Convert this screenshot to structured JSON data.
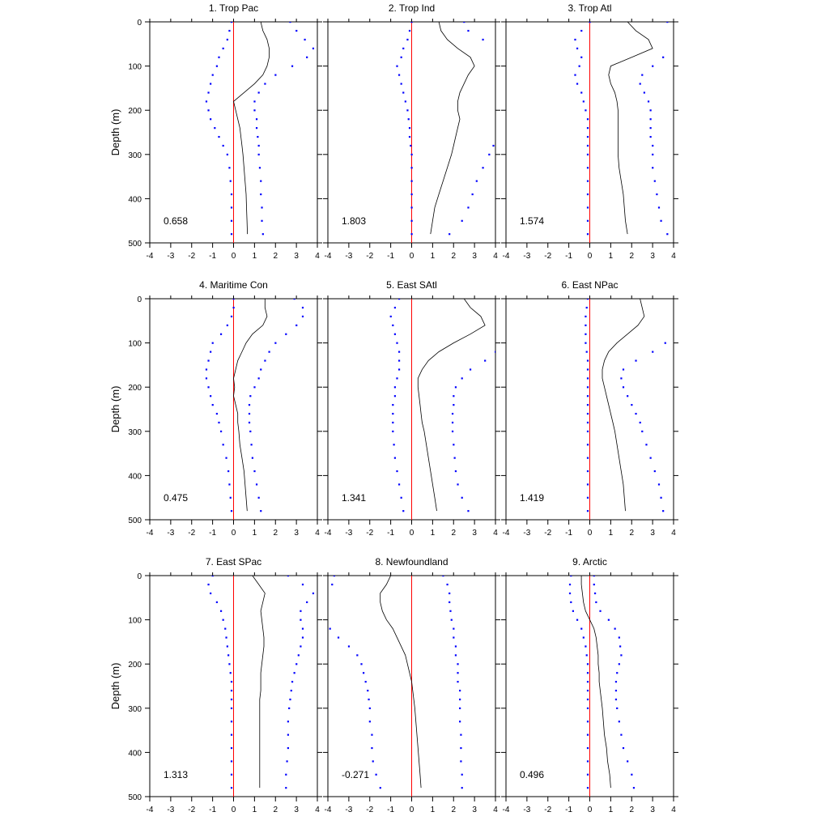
{
  "figure": {
    "ylabel": "Depth (m)",
    "x_ticks": [
      -4,
      -3,
      -2,
      -1,
      0,
      1,
      2,
      3,
      4
    ],
    "y_ticks": [
      0,
      100,
      200,
      300,
      400,
      500
    ],
    "colors": {
      "mean": "#000000",
      "bounds": "#0000ff",
      "zero": "#ff0000"
    }
  },
  "chart_data": [
    {
      "type": "line",
      "title": "1. Trop Pac",
      "value_label": "0.658",
      "xlim": [
        -4,
        4
      ],
      "ylim": [
        500,
        0
      ],
      "ylabel": "Depth (m)",
      "grid": false,
      "depth": [
        0,
        20,
        40,
        60,
        80,
        100,
        120,
        140,
        160,
        180,
        200,
        220,
        240,
        260,
        280,
        300,
        330,
        360,
        390,
        420,
        450,
        480
      ],
      "mean": [
        1.3,
        1.4,
        1.6,
        1.7,
        1.7,
        1.6,
        1.4,
        1.0,
        0.5,
        0.0,
        0.1,
        0.2,
        0.3,
        0.35,
        0.4,
        0.45,
        0.5,
        0.55,
        0.6,
        0.62,
        0.64,
        0.66
      ],
      "lower": [
        -0.1,
        -0.2,
        -0.3,
        -0.5,
        -0.7,
        -0.8,
        -1.0,
        -1.1,
        -1.2,
        -1.3,
        -1.2,
        -1.1,
        -0.9,
        -0.7,
        -0.5,
        -0.3,
        -0.2,
        -0.15,
        -0.1,
        -0.1,
        -0.1,
        -0.1
      ],
      "upper": [
        2.7,
        3.0,
        3.4,
        3.8,
        3.5,
        2.8,
        2.0,
        1.5,
        1.2,
        1.0,
        1.0,
        1.1,
        1.1,
        1.15,
        1.2,
        1.2,
        1.25,
        1.3,
        1.3,
        1.35,
        1.35,
        1.4
      ]
    },
    {
      "type": "line",
      "title": "2. Trop Ind",
      "value_label": "1.803",
      "xlim": [
        -4,
        4
      ],
      "ylim": [
        500,
        0
      ],
      "ylabel": "Depth (m)",
      "grid": false,
      "depth": [
        0,
        20,
        40,
        60,
        80,
        100,
        120,
        140,
        160,
        180,
        200,
        220,
        240,
        260,
        280,
        300,
        330,
        360,
        390,
        420,
        450,
        480
      ],
      "mean": [
        1.3,
        1.4,
        1.7,
        2.2,
        2.8,
        3.0,
        2.7,
        2.5,
        2.3,
        2.2,
        2.2,
        2.3,
        2.2,
        2.1,
        2.0,
        1.9,
        1.7,
        1.5,
        1.3,
        1.1,
        1.0,
        0.9
      ],
      "lower": [
        0.0,
        -0.1,
        -0.2,
        -0.4,
        -0.5,
        -0.7,
        -0.6,
        -0.5,
        -0.4,
        -0.3,
        -0.2,
        -0.15,
        -0.1,
        -0.1,
        -0.05,
        0.0,
        0.0,
        0.0,
        0.0,
        0.0,
        0.0,
        0.0
      ],
      "upper": [
        2.5,
        2.7,
        3.4,
        null,
        null,
        null,
        null,
        null,
        null,
        null,
        null,
        null,
        null,
        null,
        3.9,
        3.7,
        3.4,
        3.1,
        2.9,
        2.7,
        2.4,
        1.8
      ]
    },
    {
      "type": "line",
      "title": "3. Trop Atl",
      "value_label": "1.574",
      "xlim": [
        -4,
        4
      ],
      "ylim": [
        500,
        0
      ],
      "ylabel": "Depth (m)",
      "grid": false,
      "depth": [
        0,
        20,
        40,
        60,
        80,
        100,
        120,
        140,
        160,
        180,
        200,
        220,
        240,
        260,
        280,
        300,
        330,
        360,
        390,
        420,
        450,
        480
      ],
      "mean": [
        1.8,
        2.2,
        2.8,
        3.0,
        2.0,
        1.0,
        0.9,
        1.0,
        1.2,
        1.3,
        1.35,
        1.35,
        1.35,
        1.35,
        1.35,
        1.35,
        1.4,
        1.5,
        1.6,
        1.65,
        1.7,
        1.8
      ],
      "lower": [
        0.0,
        -0.4,
        -0.7,
        -0.6,
        -0.4,
        -0.5,
        -0.7,
        -0.6,
        -0.4,
        -0.3,
        -0.2,
        -0.1,
        -0.1,
        -0.1,
        -0.1,
        -0.1,
        -0.1,
        -0.1,
        -0.1,
        -0.1,
        -0.1,
        -0.1
      ],
      "upper": [
        3.7,
        null,
        null,
        null,
        3.5,
        3.0,
        2.5,
        2.4,
        2.6,
        2.8,
        2.9,
        2.9,
        2.9,
        2.9,
        3.0,
        3.0,
        3.0,
        3.1,
        3.2,
        3.3,
        3.4,
        3.7
      ]
    },
    {
      "type": "line",
      "title": "4. Maritime Con",
      "value_label": "0.475",
      "xlim": [
        -4,
        4
      ],
      "ylim": [
        500,
        0
      ],
      "ylabel": "Depth (m)",
      "grid": false,
      "depth": [
        0,
        20,
        40,
        60,
        80,
        100,
        120,
        140,
        160,
        180,
        200,
        220,
        240,
        260,
        280,
        300,
        330,
        360,
        390,
        420,
        450,
        480
      ],
      "mean": [
        1.5,
        1.5,
        1.6,
        1.4,
        0.9,
        0.6,
        0.4,
        0.2,
        0.1,
        0.0,
        0.05,
        0.0,
        0.1,
        0.2,
        0.2,
        0.25,
        0.3,
        0.4,
        0.5,
        0.55,
        0.6,
        0.65
      ],
      "lower": [
        0.0,
        0.0,
        -0.1,
        -0.3,
        -0.6,
        -1.0,
        -1.1,
        -1.2,
        -1.3,
        -1.3,
        -1.2,
        -1.1,
        -1.0,
        -0.8,
        -0.7,
        -0.6,
        -0.5,
        -0.35,
        -0.25,
        -0.2,
        -0.15,
        -0.1
      ],
      "upper": [
        2.9,
        3.3,
        3.3,
        3.0,
        2.5,
        2.0,
        1.7,
        1.5,
        1.3,
        1.2,
        1.0,
        0.8,
        0.75,
        0.75,
        0.75,
        0.8,
        0.85,
        0.9,
        1.0,
        1.1,
        1.2,
        1.3
      ]
    },
    {
      "type": "line",
      "title": "5. East SAtl",
      "value_label": "1.341",
      "xlim": [
        -4,
        4
      ],
      "ylim": [
        500,
        0
      ],
      "ylabel": "Depth (m)",
      "grid": false,
      "depth": [
        0,
        20,
        40,
        60,
        80,
        100,
        120,
        140,
        160,
        180,
        200,
        220,
        240,
        260,
        280,
        300,
        330,
        360,
        390,
        420,
        450,
        480
      ],
      "mean": [
        2.5,
        2.8,
        3.3,
        3.5,
        2.8,
        2.0,
        1.3,
        0.8,
        0.5,
        0.3,
        0.3,
        0.35,
        0.4,
        0.45,
        0.5,
        0.6,
        0.7,
        0.8,
        0.9,
        1.0,
        1.1,
        1.2
      ],
      "lower": [
        -0.6,
        -0.8,
        -1.0,
        -0.9,
        -0.8,
        -0.7,
        -0.6,
        -0.6,
        -0.6,
        -0.7,
        -0.8,
        -0.8,
        -0.9,
        -0.9,
        -0.9,
        -0.9,
        -0.85,
        -0.8,
        -0.7,
        -0.6,
        -0.5,
        -0.4
      ],
      "upper": [
        null,
        null,
        null,
        null,
        null,
        null,
        4.0,
        3.5,
        2.8,
        2.4,
        2.1,
        2.0,
        2.0,
        1.95,
        1.95,
        1.95,
        2.0,
        2.05,
        2.1,
        2.2,
        2.4,
        2.7
      ]
    },
    {
      "type": "line",
      "title": "6. East NPac",
      "value_label": "1.419",
      "xlim": [
        -4,
        4
      ],
      "ylim": [
        500,
        0
      ],
      "ylabel": "Depth (m)",
      "grid": false,
      "depth": [
        0,
        20,
        40,
        60,
        80,
        100,
        120,
        140,
        160,
        180,
        200,
        220,
        240,
        260,
        280,
        300,
        330,
        360,
        390,
        420,
        450,
        480
      ],
      "mean": [
        2.4,
        2.5,
        2.6,
        2.3,
        1.8,
        1.3,
        0.9,
        0.7,
        0.6,
        0.6,
        0.7,
        0.8,
        0.9,
        1.0,
        1.1,
        1.2,
        1.3,
        1.4,
        1.5,
        1.6,
        1.65,
        1.7
      ],
      "lower": [
        -0.1,
        -0.15,
        -0.2,
        -0.2,
        -0.2,
        -0.2,
        -0.15,
        -0.1,
        -0.1,
        -0.1,
        -0.1,
        -0.1,
        -0.1,
        -0.1,
        -0.1,
        -0.1,
        -0.1,
        -0.1,
        -0.1,
        -0.1,
        -0.1,
        -0.1
      ],
      "upper": [
        null,
        null,
        null,
        null,
        null,
        3.6,
        3.0,
        2.2,
        1.6,
        1.5,
        1.6,
        1.8,
        2.0,
        2.2,
        2.4,
        2.5,
        2.7,
        2.9,
        3.1,
        3.3,
        3.4,
        3.5
      ]
    },
    {
      "type": "line",
      "title": "7. East SPac",
      "value_label": "1.313",
      "xlim": [
        -4,
        4
      ],
      "ylim": [
        500,
        0
      ],
      "ylabel": "Depth (m)",
      "grid": false,
      "depth": [
        0,
        20,
        40,
        60,
        80,
        100,
        120,
        140,
        160,
        180,
        200,
        220,
        240,
        260,
        280,
        300,
        330,
        360,
        390,
        420,
        450,
        480
      ],
      "mean": [
        0.9,
        1.2,
        1.5,
        1.4,
        1.3,
        1.35,
        1.4,
        1.45,
        1.45,
        1.4,
        1.35,
        1.3,
        1.3,
        1.3,
        1.25,
        1.25,
        1.25,
        1.25,
        1.25,
        1.25,
        1.25,
        1.25
      ],
      "lower": [
        -1.0,
        -1.2,
        -1.1,
        -0.8,
        -0.6,
        -0.5,
        -0.4,
        -0.35,
        -0.3,
        -0.25,
        -0.2,
        -0.15,
        -0.1,
        -0.1,
        -0.1,
        -0.1,
        -0.1,
        -0.1,
        -0.1,
        -0.1,
        -0.1,
        -0.1
      ],
      "upper": [
        2.6,
        3.3,
        3.8,
        3.5,
        3.2,
        3.2,
        3.3,
        3.3,
        3.2,
        3.1,
        3.0,
        2.9,
        2.8,
        2.75,
        2.7,
        2.65,
        2.6,
        2.6,
        2.6,
        2.55,
        2.5,
        2.5
      ]
    },
    {
      "type": "line",
      "title": "8. Newfoundland",
      "value_label": "-0.271",
      "xlim": [
        -4,
        4
      ],
      "ylim": [
        500,
        0
      ],
      "ylabel": "Depth (m)",
      "grid": false,
      "depth": [
        0,
        20,
        40,
        60,
        80,
        100,
        120,
        140,
        160,
        180,
        200,
        220,
        240,
        260,
        280,
        300,
        330,
        360,
        390,
        420,
        450,
        480
      ],
      "mean": [
        -1.0,
        -1.2,
        -1.5,
        -1.5,
        -1.4,
        -1.2,
        -0.9,
        -0.7,
        -0.5,
        -0.3,
        -0.2,
        -0.1,
        0.0,
        0.05,
        0.1,
        0.15,
        0.2,
        0.25,
        0.3,
        0.35,
        0.4,
        0.45
      ],
      "lower": [
        -3.7,
        -3.8,
        null,
        null,
        null,
        null,
        -3.9,
        -3.5,
        -3.0,
        -2.6,
        -2.4,
        -2.3,
        -2.2,
        -2.1,
        -2.05,
        -2.0,
        -2.0,
        -1.9,
        -1.9,
        -1.85,
        -1.7,
        -1.5
      ],
      "upper": [
        1.5,
        1.7,
        1.8,
        1.8,
        1.85,
        1.9,
        2.0,
        2.0,
        2.1,
        2.1,
        2.2,
        2.2,
        2.2,
        2.3,
        2.3,
        2.3,
        2.3,
        2.35,
        2.35,
        2.35,
        2.4,
        2.4
      ]
    },
    {
      "type": "line",
      "title": "9. Arctic",
      "value_label": "0.496",
      "xlim": [
        -4,
        4
      ],
      "ylim": [
        500,
        0
      ],
      "ylabel": "Depth (m)",
      "grid": false,
      "depth": [
        0,
        20,
        40,
        60,
        80,
        100,
        120,
        140,
        160,
        180,
        200,
        220,
        240,
        260,
        280,
        300,
        330,
        360,
        390,
        420,
        450,
        480
      ],
      "mean": [
        -0.4,
        -0.4,
        -0.35,
        -0.3,
        -0.2,
        0.0,
        0.2,
        0.3,
        0.35,
        0.4,
        0.4,
        0.45,
        0.45,
        0.5,
        0.55,
        0.6,
        0.65,
        0.7,
        0.8,
        0.85,
        0.95,
        1.0
      ],
      "lower": [
        -0.9,
        -0.95,
        -0.95,
        -0.9,
        -0.8,
        -0.6,
        -0.4,
        -0.3,
        -0.2,
        -0.15,
        -0.1,
        -0.1,
        -0.1,
        -0.1,
        -0.1,
        -0.1,
        -0.1,
        -0.1,
        -0.1,
        -0.1,
        -0.1,
        -0.1
      ],
      "upper": [
        0.2,
        0.2,
        0.25,
        0.3,
        0.5,
        0.9,
        1.2,
        1.4,
        1.45,
        1.5,
        1.4,
        1.3,
        1.25,
        1.25,
        1.25,
        1.3,
        1.4,
        1.5,
        1.6,
        1.8,
        2.0,
        2.1
      ]
    }
  ]
}
